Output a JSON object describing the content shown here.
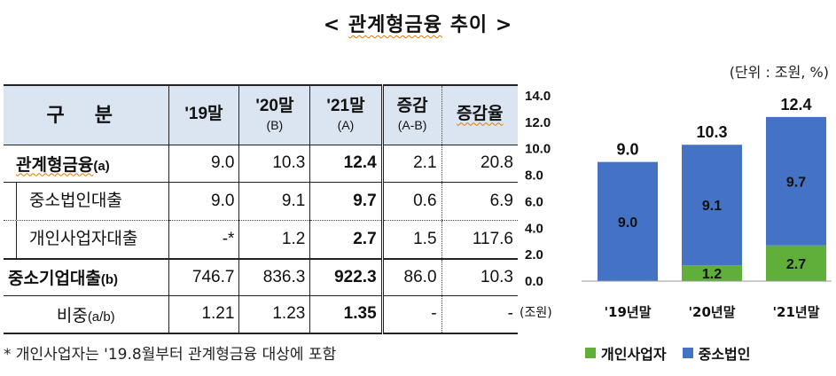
{
  "title": {
    "prefix": "< ",
    "keyword": "관계형금융",
    "rest": " 추이 >"
  },
  "unit": "(단위 : 조원, %)",
  "table": {
    "headers": [
      {
        "label": "구 분",
        "sub": ""
      },
      {
        "label": "'19말",
        "sub": ""
      },
      {
        "label": "'20말",
        "sub": "(B)"
      },
      {
        "label": "'21말",
        "sub": "(A)"
      },
      {
        "label": "증감",
        "sub": "(A-B)"
      },
      {
        "label": "증감율",
        "sub": ""
      }
    ],
    "rows": [
      {
        "label": "관계형금융",
        "suffix": "(a)",
        "values": [
          "9.0",
          "10.3",
          "12.4",
          "2.1",
          "20.8"
        ]
      },
      {
        "label": "중소법인대출",
        "suffix": "",
        "values": [
          "9.0",
          "9.1",
          "9.7",
          "0.6",
          "6.9"
        ]
      },
      {
        "label": "개인사업자대출",
        "suffix": "",
        "values": [
          "-*",
          "1.2",
          "2.7",
          "1.5",
          "117.6"
        ]
      },
      {
        "label": "중소기업대출",
        "suffix": "(b)",
        "values": [
          "746.7",
          "836.3",
          "922.3",
          "86.0",
          "10.3"
        ]
      },
      {
        "label": "비중",
        "suffix": "(a/b)",
        "values": [
          "1.21",
          "1.23",
          "1.35",
          "-",
          "-"
        ]
      }
    ]
  },
  "note": "* 개인사업자는 '19.8월부터 관계형금융 대상에 포함",
  "chart_data": {
    "type": "bar",
    "stacked": true,
    "categories": [
      "'19년말",
      "'20년말",
      "'21년말"
    ],
    "series": [
      {
        "name": "개인사업자",
        "color": "#5faf3a",
        "values": [
          0,
          1.2,
          2.7
        ]
      },
      {
        "name": "중소법인",
        "color": "#4472c4",
        "values": [
          9.0,
          9.1,
          9.7
        ]
      }
    ],
    "totals": [
      9.0,
      10.3,
      12.4
    ],
    "segment_labels": [
      [
        "",
        "9.0"
      ],
      [
        "1.2",
        "9.1"
      ],
      [
        "2.7",
        "9.7"
      ]
    ],
    "ylim": [
      0,
      14
    ],
    "yticks": [
      "0.0",
      "2.0",
      "4.0",
      "6.0",
      "8.0",
      "10.0",
      "12.0",
      "14.0"
    ],
    "ylabel": "(조원)",
    "legend_position": "bottom"
  }
}
